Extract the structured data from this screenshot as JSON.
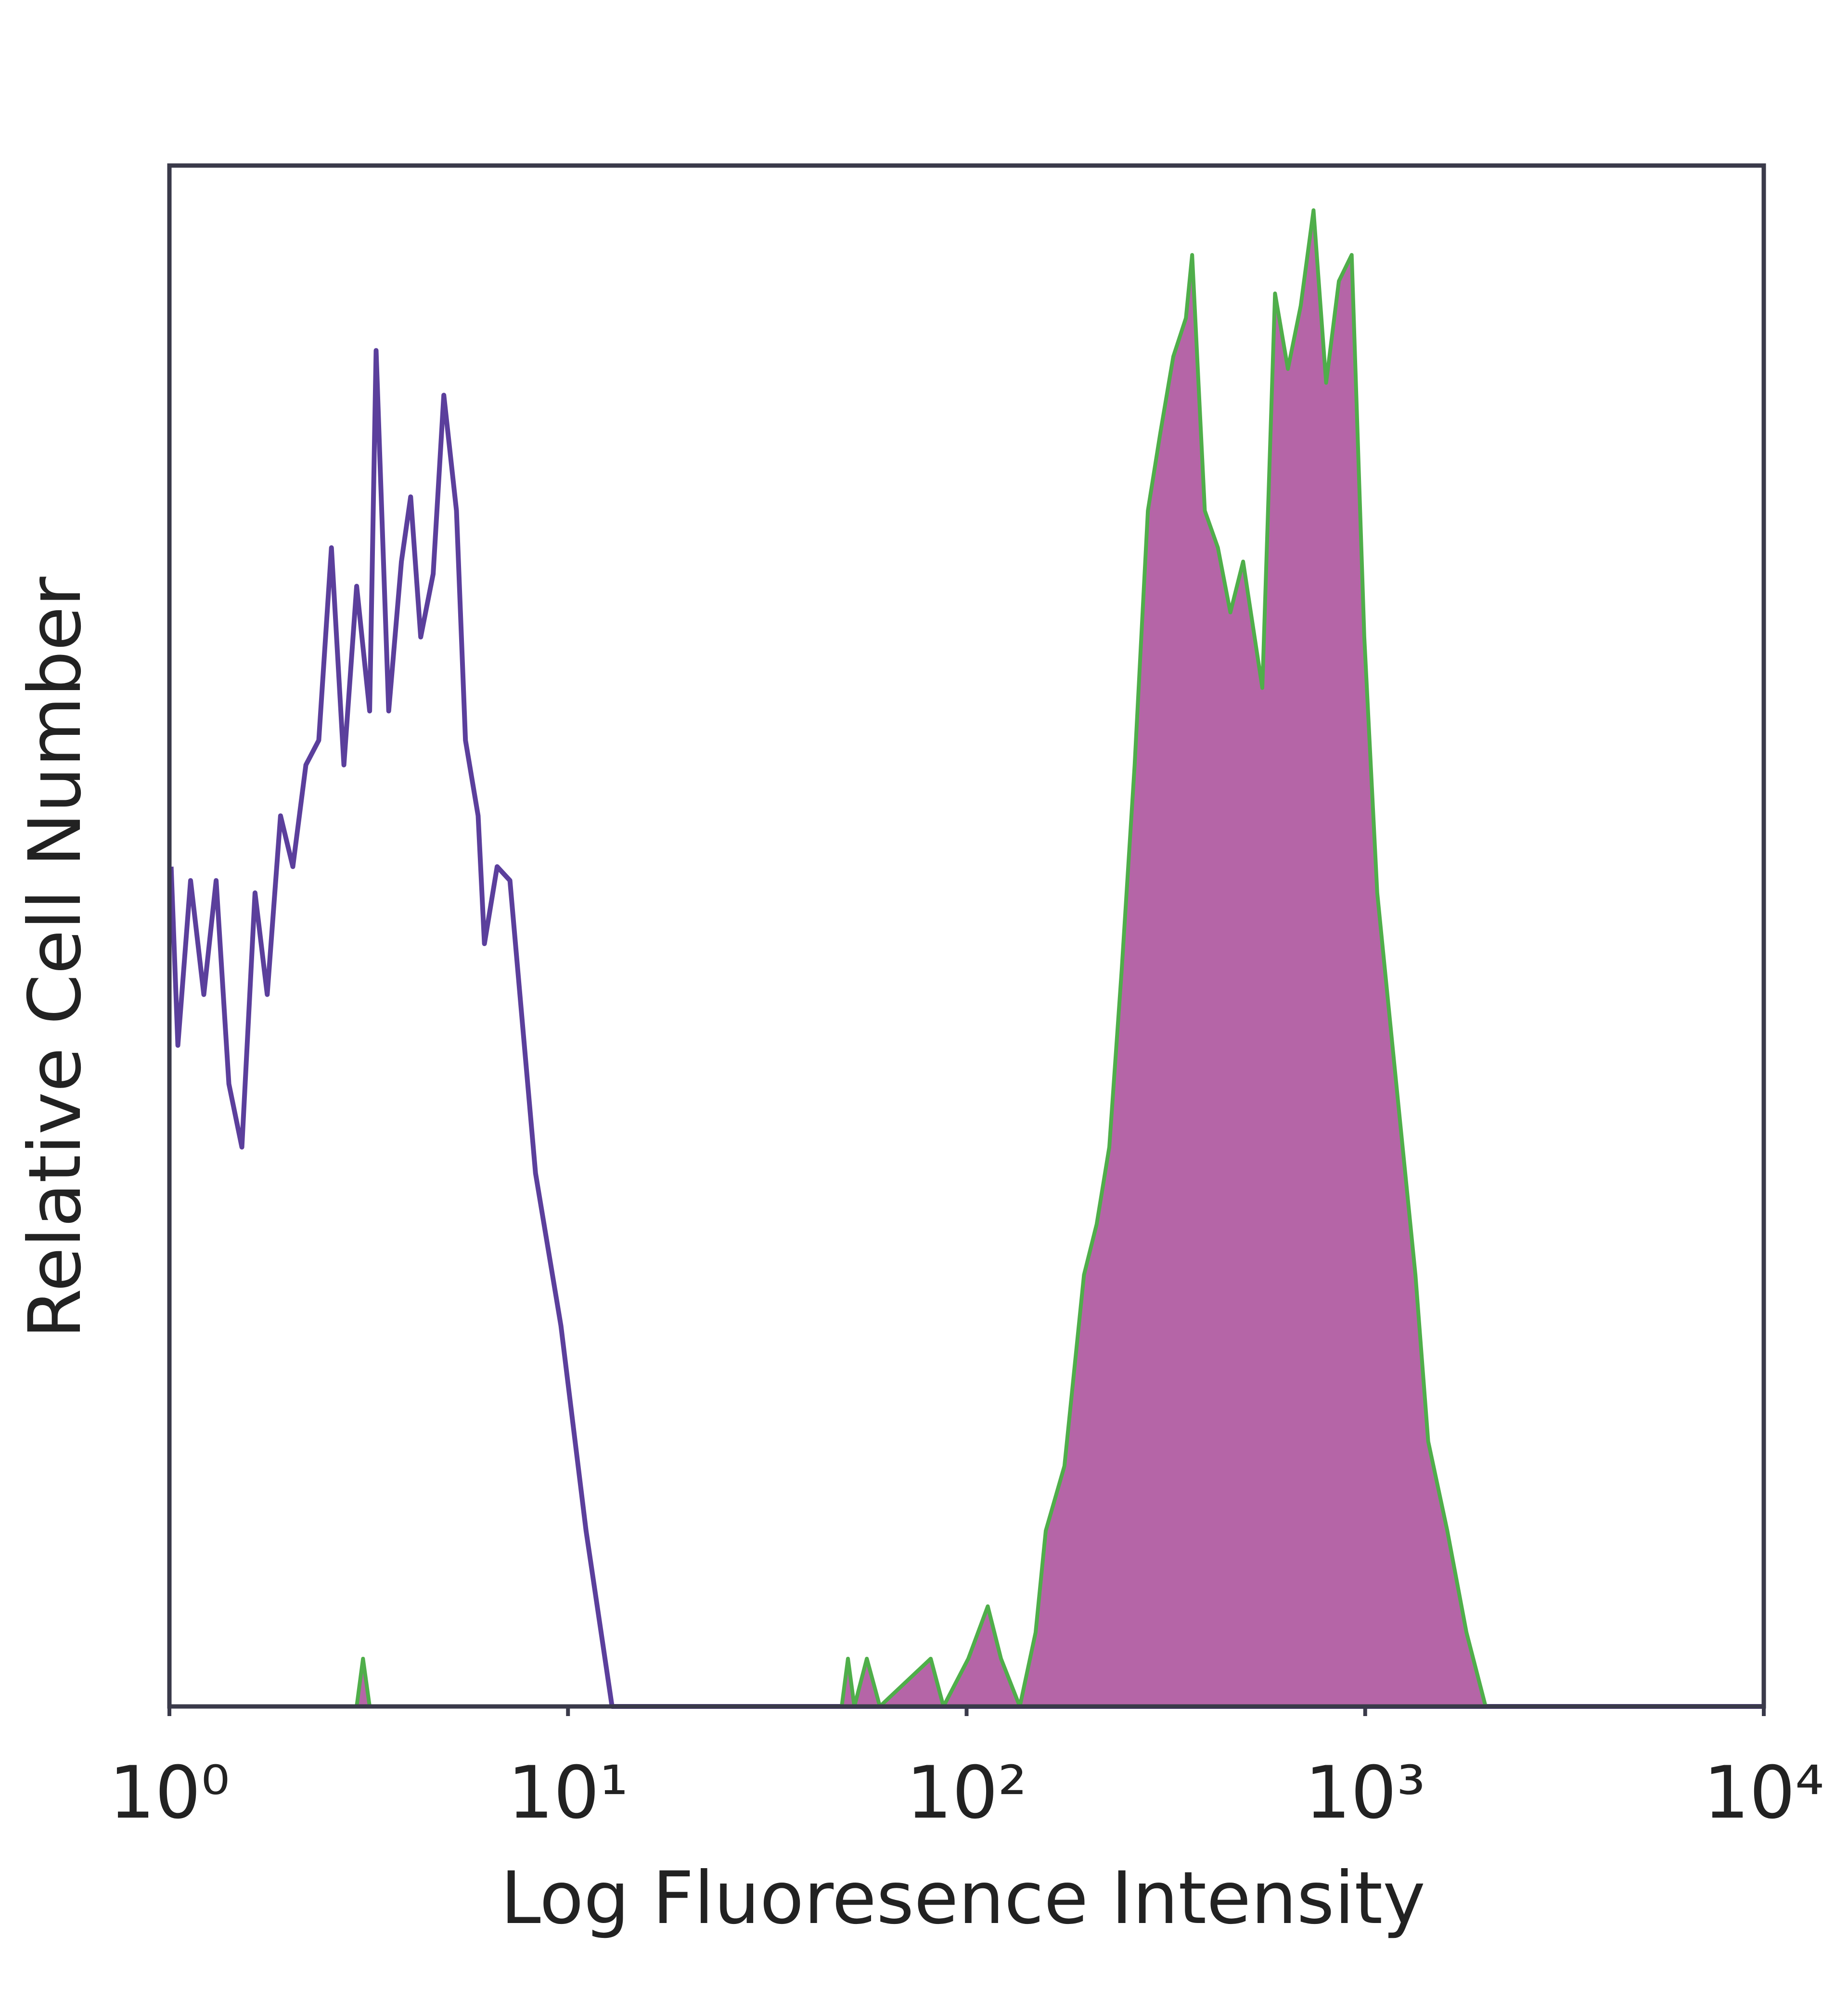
{
  "chart_data": {
    "type": "histogram-overlay",
    "xlabel": "Log Fluoresence Intensity",
    "ylabel": "Relative Cell Number",
    "xscale": "log",
    "xlim": [
      1,
      10000
    ],
    "xticks": [
      {
        "value": 1,
        "label": "10⁰"
      },
      {
        "value": 10,
        "label": "10¹"
      },
      {
        "value": 100,
        "label": "10²"
      },
      {
        "value": 1000,
        "label": "10³"
      },
      {
        "value": 10000,
        "label": "10⁴"
      }
    ],
    "ylim": [
      0,
      100
    ],
    "series": [
      {
        "color": "#5b3f9c",
        "fill": null,
        "x": [
          1.01,
          1.05,
          1.13,
          1.22,
          1.31,
          1.41,
          1.52,
          1.64,
          1.76,
          1.9,
          2.04,
          2.2,
          2.37,
          2.55,
          2.74,
          2.95,
          3.18,
          3.3,
          3.55,
          3.82,
          4.03,
          4.27,
          4.59,
          4.88,
          5.25,
          5.53,
          5.95,
          6.17,
          6.64,
          7.15,
          8.29,
          9.6,
          11.1,
          12.9,
          31.2,
          10000
        ],
        "values": [
          54.5,
          42.9,
          53.6,
          46.2,
          53.6,
          40.4,
          36.3,
          52.8,
          46.2,
          57.8,
          54.5,
          61.1,
          62.7,
          75.2,
          61.1,
          72.7,
          64.6,
          88.0,
          64.6,
          74.3,
          78.5,
          69.4,
          73.5,
          85.1,
          77.6,
          62.7,
          57.8,
          49.5,
          54.5,
          53.6,
          34.6,
          24.7,
          11.4,
          0,
          0,
          0
        ]
      },
      {
        "color": "#4fae4a",
        "fill": "#b565a7",
        "x": [
          1,
          2.95,
          3.06,
          3.18,
          48.6,
          50.4,
          52.3,
          56.2,
          60.6,
          81.3,
          87.5,
          101,
          113,
          122,
          136,
          149,
          158,
          176,
          197,
          212,
          228,
          245,
          264,
          285,
          306,
          330,
          355,
          368,
          396,
          427,
          459,
          494,
          552,
          594,
          640,
          689,
          742,
          798,
          859,
          925,
          995,
          1072,
          1197,
          1337,
          1439,
          1607,
          1795,
          2005,
          10000
        ],
        "values": [
          0,
          0,
          3.1,
          0,
          0,
          3.1,
          0,
          3.1,
          0,
          3.1,
          0,
          3.1,
          6.5,
          3.1,
          0,
          4.8,
          11.4,
          15.6,
          28.0,
          31.3,
          36.3,
          47.8,
          61.1,
          77.6,
          82.6,
          87.6,
          90.1,
          94.2,
          77.6,
          75.2,
          71.0,
          74.3,
          66.1,
          91.7,
          86.8,
          90.9,
          97.1,
          85.9,
          92.5,
          94.2,
          69.4,
          52.8,
          40.4,
          28.0,
          17.2,
          11.4,
          4.8,
          0,
          0
        ]
      }
    ]
  }
}
